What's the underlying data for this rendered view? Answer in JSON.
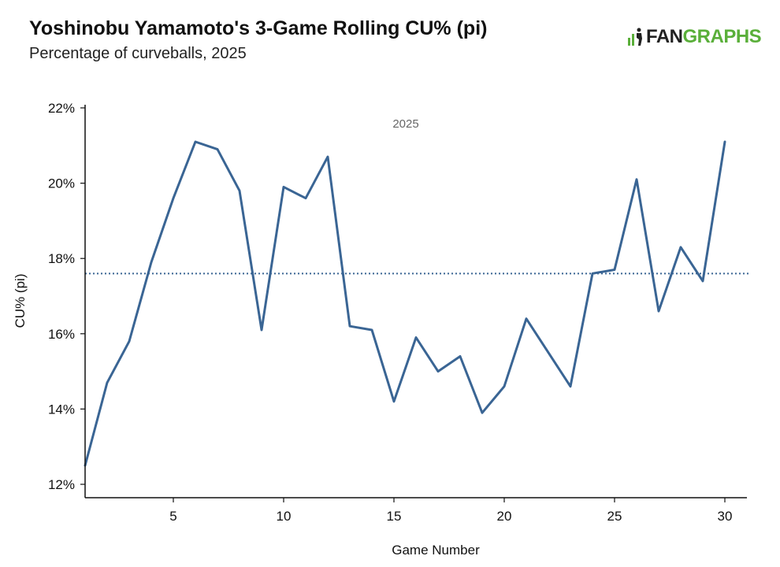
{
  "header": {
    "title": "Yoshinobu Yamamoto's 3-Game Rolling CU% (pi)",
    "subtitle": "Percentage of curveballs, 2025"
  },
  "logo": {
    "fan": "FAN",
    "graphs": "GRAPHS",
    "icon": "fangraphs-logo-icon"
  },
  "colors": {
    "line": "#3a6594",
    "reference_line": "#3a6594",
    "logo_green": "#5aaf3a",
    "axis": "#111111"
  },
  "chart_data": {
    "type": "line",
    "title": "Yoshinobu Yamamoto's 3-Game Rolling CU% (pi)",
    "subtitle": "Percentage of curveballs, 2025",
    "xlabel": "Game Number",
    "ylabel": "CU% (pi)",
    "annotation": "2025",
    "xlim": [
      1,
      31
    ],
    "ylim": [
      12,
      22
    ],
    "x_ticks": [
      5,
      10,
      15,
      20,
      25,
      30
    ],
    "y_ticks": [
      12,
      14,
      16,
      18,
      20,
      22
    ],
    "y_tick_labels": [
      "12%",
      "14%",
      "16%",
      "18%",
      "20%",
      "22%"
    ],
    "grid": false,
    "reference_line": {
      "y": 17.6,
      "style": "dotted"
    },
    "series": [
      {
        "x": [
          1,
          2,
          3,
          4,
          5,
          6,
          7,
          8,
          9,
          10,
          11,
          12,
          13,
          14,
          15,
          16,
          17,
          18,
          19,
          20,
          21,
          22,
          23,
          24,
          25,
          26,
          27,
          28,
          29,
          30
        ],
        "values": [
          12.5,
          14.7,
          15.8,
          17.9,
          19.6,
          21.1,
          20.9,
          19.8,
          16.1,
          19.9,
          19.6,
          20.7,
          16.2,
          16.1,
          14.2,
          15.9,
          15.0,
          15.4,
          13.9,
          14.6,
          16.4,
          15.5,
          14.6,
          17.6,
          17.7,
          20.1,
          16.6,
          18.3,
          17.4,
          21.1
        ]
      }
    ]
  }
}
